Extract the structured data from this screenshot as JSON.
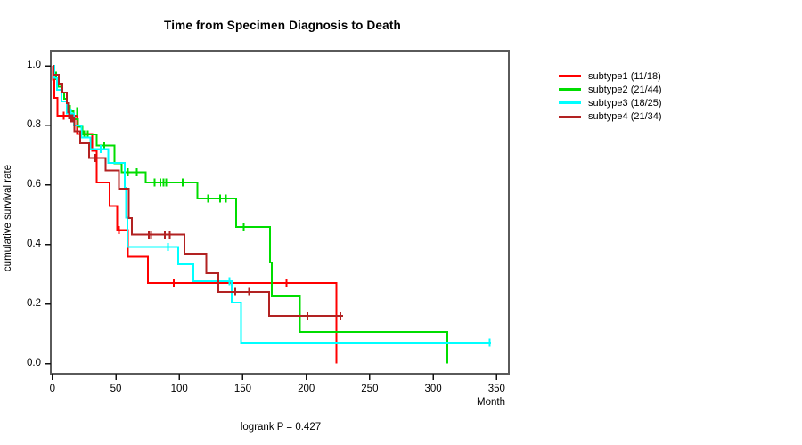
{
  "title": "Time from Specimen Diagnosis to Death",
  "footnote": "logrank P = 0.427",
  "axes": {
    "x": {
      "unit": "Month",
      "ticks": [
        "0",
        "50",
        "100",
        "150",
        "200",
        "250",
        "300",
        "350"
      ],
      "tick_months": [
        0,
        50,
        100,
        150,
        200,
        250,
        300,
        350
      ]
    },
    "y": {
      "label": "cumulative survival rate",
      "ticks": [
        "1.0",
        "0.8",
        "0.6",
        "0.4",
        "0.2",
        "0.0"
      ],
      "tick_values": [
        1.0,
        0.8,
        0.6,
        0.4,
        0.2,
        0.0
      ]
    }
  },
  "legend": {
    "items": [
      {
        "label": "subtype1 (11/18)",
        "color": "#ff0000"
      },
      {
        "label": "subtype2 (21/44)",
        "color": "#00dd00"
      },
      {
        "label": "subtype3 (18/25)",
        "color": "#00ffff"
      },
      {
        "label": "subtype4 (21/34)",
        "color": "#b22222"
      }
    ]
  },
  "chart_data": {
    "type": "line",
    "variant": "kaplan-meier-step",
    "title": "Time from Specimen Diagnosis to Death",
    "xlabel": "Month",
    "ylabel": "cumulative survival rate",
    "xlim": [
      0,
      360
    ],
    "ylim": [
      0.0,
      1.0
    ],
    "grid": false,
    "legend_position": "right-outside",
    "annotation": "logrank P = 0.427",
    "series": [
      {
        "name": "subtype1 (11/18)",
        "color": "#ff0000",
        "steps": [
          [
            0,
            1.0
          ],
          [
            0.4,
            0.953
          ],
          [
            1.5,
            0.893
          ],
          [
            4,
            0.832
          ],
          [
            19.6,
            0.772
          ],
          [
            31.3,
            0.715
          ],
          [
            34.8,
            0.609
          ],
          [
            44.9,
            0.529
          ],
          [
            51.2,
            0.449
          ],
          [
            59.4,
            0.359
          ],
          [
            75.3,
            0.27
          ],
          [
            223.8,
            0.0
          ]
        ],
        "censors": [
          [
            9,
            0.832
          ],
          [
            52.3,
            0.449
          ],
          [
            95.7,
            0.27
          ],
          [
            184.6,
            0.27
          ]
        ],
        "end_month": 223.8
      },
      {
        "name": "subtype2 (21/44)",
        "color": "#00dd00",
        "steps": [
          [
            0,
            1.0
          ],
          [
            1.2,
            0.977
          ],
          [
            2.8,
            0.955
          ],
          [
            4.4,
            0.93
          ],
          [
            7,
            0.91
          ],
          [
            9.1,
            0.89
          ],
          [
            11.4,
            0.865
          ],
          [
            13.7,
            0.848
          ],
          [
            16.8,
            0.82
          ],
          [
            20,
            0.795
          ],
          [
            23.5,
            0.77
          ],
          [
            34.8,
            0.733
          ],
          [
            48.8,
            0.673
          ],
          [
            54.7,
            0.643
          ],
          [
            73.4,
            0.608
          ],
          [
            114.4,
            0.555
          ],
          [
            144.9,
            0.459
          ],
          [
            171.3,
            0.339
          ],
          [
            172.9,
            0.225
          ],
          [
            195.1,
            0.106
          ],
          [
            311,
            0.0
          ]
        ],
        "censors": [
          [
            19.6,
            0.848
          ],
          [
            25,
            0.77
          ],
          [
            28,
            0.77
          ],
          [
            40.7,
            0.733
          ],
          [
            59.4,
            0.643
          ],
          [
            66.4,
            0.643
          ],
          [
            80.4,
            0.608
          ],
          [
            85.1,
            0.608
          ],
          [
            87.4,
            0.608
          ],
          [
            89.8,
            0.608
          ],
          [
            102.7,
            0.608
          ],
          [
            122.6,
            0.555
          ],
          [
            132,
            0.555
          ],
          [
            136.6,
            0.555
          ],
          [
            150.7,
            0.459
          ]
        ],
        "end_month": 311
      },
      {
        "name": "subtype3 (18/25)",
        "color": "#00ffff",
        "steps": [
          [
            0,
            1.0
          ],
          [
            1.5,
            0.96
          ],
          [
            3.5,
            0.92
          ],
          [
            7,
            0.88
          ],
          [
            11.5,
            0.84
          ],
          [
            17,
            0.8
          ],
          [
            23,
            0.76
          ],
          [
            30,
            0.72
          ],
          [
            44,
            0.674
          ],
          [
            57,
            0.59
          ],
          [
            58,
            0.49
          ],
          [
            59,
            0.391
          ],
          [
            99,
            0.334
          ],
          [
            111,
            0.277
          ],
          [
            141.3,
            0.205
          ],
          [
            148.8,
            0.07
          ]
        ],
        "censors": [
          [
            14.5,
            0.84
          ],
          [
            38,
            0.72
          ],
          [
            91,
            0.391
          ],
          [
            139.4,
            0.277
          ],
          [
            344.5,
            0.07
          ]
        ],
        "end_month": 345.5
      },
      {
        "name": "subtype4 (21/34)",
        "color": "#b22222",
        "steps": [
          [
            0,
            1.0
          ],
          [
            1,
            0.97
          ],
          [
            5,
            0.94
          ],
          [
            8,
            0.91
          ],
          [
            11.5,
            0.875
          ],
          [
            12.5,
            0.845
          ],
          [
            13,
            0.823
          ],
          [
            17.2,
            0.78
          ],
          [
            22,
            0.74
          ],
          [
            29,
            0.69
          ],
          [
            41.8,
            0.649
          ],
          [
            52.3,
            0.588
          ],
          [
            60,
            0.489
          ],
          [
            62.8,
            0.434
          ],
          [
            103.9,
            0.369
          ],
          [
            121.4,
            0.304
          ],
          [
            130.8,
            0.24
          ],
          [
            170.6,
            0.16
          ]
        ],
        "censors": [
          [
            14.5,
            0.823
          ],
          [
            16,
            0.823
          ],
          [
            33.5,
            0.69
          ],
          [
            75.8,
            0.434
          ],
          [
            77.6,
            0.434
          ],
          [
            88.6,
            0.434
          ],
          [
            92.6,
            0.434
          ],
          [
            144,
            0.24
          ],
          [
            155,
            0.24
          ],
          [
            201,
            0.16
          ],
          [
            227,
            0.16
          ]
        ],
        "end_month": 229
      }
    ]
  }
}
